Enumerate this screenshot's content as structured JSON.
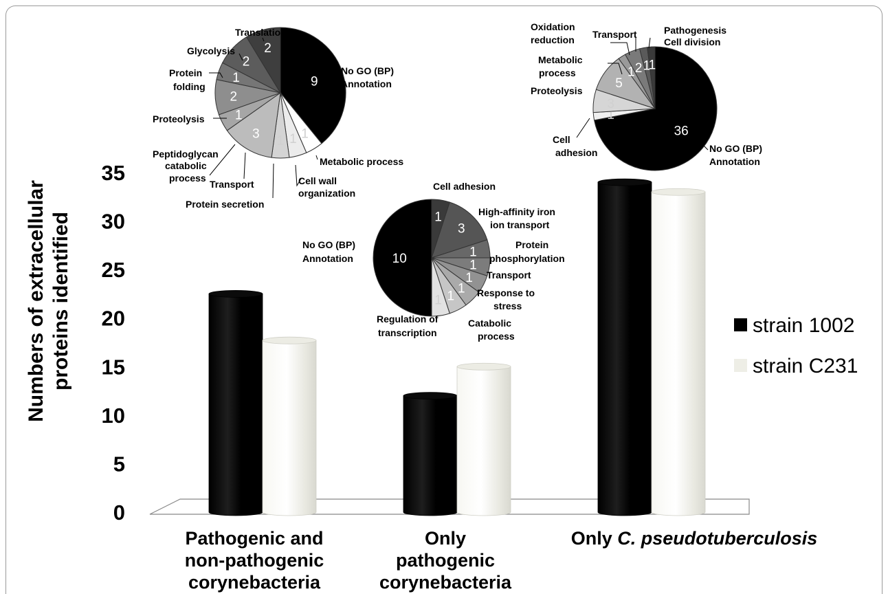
{
  "chart_data": {
    "type": "bar",
    "ylabel_line1": "Numbers of extracellular",
    "ylabel_line2": "proteins identified",
    "ylim": [
      0,
      35
    ],
    "yticks": [
      "0",
      "5",
      "10",
      "15",
      "20",
      "25",
      "30",
      "35"
    ],
    "categories": [
      {
        "lines": [
          "Pathogenic and",
          "non-pathogenic",
          "corynebacteria"
        ]
      },
      {
        "lines": [
          "Only",
          "pathogenic",
          "corynebacteria"
        ]
      },
      {
        "prefix": "Only ",
        "italic": "C. pseudotuberculosis"
      }
    ],
    "series": [
      {
        "name": "strain 1002",
        "color": "#000000",
        "values": [
          22.5,
          12,
          34
        ]
      },
      {
        "name": "strain C231",
        "color": "#eeeee6",
        "values": [
          17.7,
          15,
          33
        ]
      }
    ],
    "legend_position": "right",
    "grid": false
  },
  "pies": [
    {
      "category": "Pathogenic and non-pathogenic corynebacteria",
      "slices": [
        {
          "label": "No GO (BP) Annotation",
          "value": 9,
          "color": "#000000"
        },
        {
          "label": "Metabolic process",
          "value": 1,
          "color": "#ffffff"
        },
        {
          "label": "Cell wall organization",
          "value": 1,
          "color": "#ececec"
        },
        {
          "label": "Protein secretion",
          "value": 1,
          "color": "#d4d4d4"
        },
        {
          "label": "Transport",
          "value": 3,
          "color": "#bcbcbc"
        },
        {
          "label": "Peptidoglycan catabolic process",
          "value": 1,
          "color": "#a6a6a6"
        },
        {
          "label": "Proteolysis",
          "value": 2,
          "color": "#8e8e8e"
        },
        {
          "label": "Protein folding",
          "value": 1,
          "color": "#767676"
        },
        {
          "label": "Glycolysis",
          "value": 2,
          "color": "#5c5c5c"
        },
        {
          "label": "Translation",
          "value": 2,
          "color": "#3e3e3e"
        }
      ]
    },
    {
      "category": "Only pathogenic corynebacteria",
      "slices": [
        {
          "label": "Cell adhesion",
          "value": 1,
          "color": "#3a3a3a"
        },
        {
          "label": "High-affinity iron ion transport",
          "value": 3,
          "color": "#555555"
        },
        {
          "label": "Protein phosphorylation",
          "value": 1,
          "color": "#686868"
        },
        {
          "label": "Transport",
          "value": 1,
          "color": "#7c7c7c"
        },
        {
          "label": "Response to stress",
          "value": 1,
          "color": "#929292"
        },
        {
          "label": "Catabolic process",
          "value": 1,
          "color": "#aaaaaa"
        },
        {
          "label": "Regulation of transcription",
          "value": 1,
          "color": "#c6c6c6"
        },
        {
          "label": "Regulation of transcription (2)",
          "value": 1,
          "color": "#e2e2e2"
        },
        {
          "label": "No GO (BP) Annotation",
          "value": 10,
          "color": "#000000"
        }
      ]
    },
    {
      "category": "Only C. pseudotuberculosis",
      "slices": [
        {
          "label": "No GO (BP) Annotation",
          "value": 36,
          "color": "#000000"
        },
        {
          "label": "Cell adhesion",
          "value": 1,
          "color": "#efefef"
        },
        {
          "label": "Proteolysis",
          "value": 3,
          "color": "#d6d6d6"
        },
        {
          "label": "Metabolic process",
          "value": 5,
          "color": "#b2b2b2"
        },
        {
          "label": "Oxidation reduction",
          "value": 1,
          "color": "#9a9a9a"
        },
        {
          "label": "Transport",
          "value": 2,
          "color": "#7a7a7a"
        },
        {
          "label": "Pathogenesis",
          "value": 1,
          "color": "#5a5a5a"
        },
        {
          "label": "Cell division",
          "value": 1,
          "color": "#3a3a3a"
        }
      ]
    }
  ],
  "pie_labels": {
    "pie1": {
      "translation": "Translation",
      "glycolysis": "Glycolysis",
      "protein_folding": [
        "Protein",
        "folding"
      ],
      "proteolysis": "Proteolysis",
      "peptidoglycan": [
        "Peptidoglycan",
        "catabolic",
        "process"
      ],
      "transport": "Transport",
      "protein_secretion": "Protein secretion",
      "cell_wall": [
        "Cell wall",
        "organization"
      ],
      "metabolic": "Metabolic process",
      "nogo": [
        "No GO (BP)",
        "Annotation"
      ]
    },
    "pie2": {
      "cell_adhesion": "Cell adhesion",
      "iron": [
        "High-affinity iron",
        "ion transport"
      ],
      "phospho": [
        "Protein",
        "phosphorylation"
      ],
      "transport": "Transport",
      "stress": [
        "Response to",
        "stress"
      ],
      "catabolic": [
        "Catabolic",
        "process"
      ],
      "regulation": [
        "Regulation of",
        "transcription"
      ],
      "nogo": [
        "No GO (BP)",
        "Annotation"
      ]
    },
    "pie3": {
      "oxidation": [
        "Oxidation",
        "reduction"
      ],
      "transport": "Transport",
      "pathogenesis": "Pathogenesis",
      "cell_division": "Cell division",
      "metabolic": [
        "Metabolic",
        "process"
      ],
      "proteolysis": "Proteolysis",
      "cell_adhesion": [
        "Cell",
        "adhesion"
      ],
      "nogo": [
        "No GO (BP)",
        "Annotation"
      ]
    }
  }
}
